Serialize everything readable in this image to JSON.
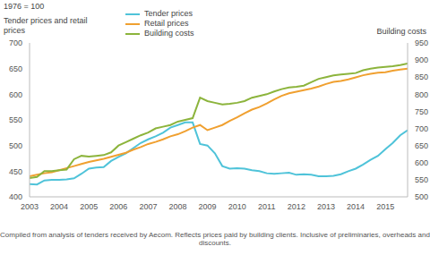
{
  "chart_data": {
    "type": "line",
    "title": "1976 = 100",
    "y_label": "Tender prices and retail prices",
    "y2_label": "Building costs",
    "footnote": "Compiled from analysis of tenders received by Aecom. Reflects prices paid by building clients. Inclusive of preliminaries, overheads and discounts.",
    "x": [
      2003,
      2003.25,
      2003.5,
      2003.75,
      2004,
      2004.25,
      2004.5,
      2004.75,
      2005,
      2005.25,
      2005.5,
      2005.75,
      2006,
      2006.25,
      2006.5,
      2006.75,
      2007,
      2007.25,
      2007.5,
      2007.75,
      2008,
      2008.25,
      2008.5,
      2008.75,
      2009,
      2009.25,
      2009.5,
      2009.75,
      2010,
      2010.25,
      2010.5,
      2010.75,
      2011,
      2011.25,
      2011.5,
      2011.75,
      2012,
      2012.25,
      2012.5,
      2012.75,
      2013,
      2013.25,
      2013.5,
      2013.75,
      2014,
      2014.25,
      2014.5,
      2014.75,
      2015,
      2015.25,
      2015.5,
      2015.75
    ],
    "xlim": [
      2003,
      2015.75
    ],
    "xticks": [
      2003,
      2004,
      2005,
      2006,
      2007,
      2008,
      2009,
      2010,
      2011,
      2012,
      2013,
      2014,
      2015
    ],
    "ylim": [
      400,
      700
    ],
    "yticks": [
      400,
      450,
      500,
      550,
      600,
      650,
      700
    ],
    "y2lim": [
      500,
      950
    ],
    "y2ticks": [
      500,
      550,
      600,
      650,
      700,
      750,
      800,
      850,
      900,
      950
    ],
    "grid": false,
    "legend": "top",
    "series": [
      {
        "name": "Tender prices",
        "color": "#4fc3d9",
        "values": [
          425,
          424,
          432,
          433,
          433,
          434,
          436,
          445,
          455,
          457,
          458,
          470,
          478,
          485,
          495,
          505,
          512,
          518,
          525,
          535,
          540,
          545,
          545,
          503,
          500,
          485,
          460,
          455,
          456,
          455,
          452,
          450,
          446,
          445,
          446,
          447,
          443,
          444,
          443,
          440,
          440,
          441,
          444,
          450,
          455,
          463,
          472,
          480,
          493,
          505,
          520,
          530
        ]
      },
      {
        "name": "Retail prices",
        "color": "#f0a030",
        "values": [
          440,
          443,
          446,
          448,
          452,
          456,
          460,
          464,
          468,
          471,
          474,
          478,
          482,
          486,
          492,
          497,
          503,
          507,
          512,
          518,
          522,
          528,
          535,
          540,
          530,
          535,
          540,
          548,
          555,
          563,
          570,
          575,
          582,
          590,
          597,
          602,
          605,
          608,
          611,
          615,
          620,
          624,
          626,
          629,
          633,
          637,
          640,
          642,
          643,
          646,
          648,
          650
        ]
      },
      {
        "name": "Building costs",
        "color": "#8cb43c",
        "axis": "y2",
        "values": [
          555,
          558,
          575,
          575,
          578,
          580,
          610,
          620,
          618,
          620,
          622,
          630,
          650,
          660,
          670,
          680,
          688,
          700,
          705,
          710,
          720,
          725,
          730,
          790,
          780,
          775,
          770,
          772,
          775,
          780,
          790,
          795,
          800,
          808,
          815,
          820,
          822,
          825,
          835,
          845,
          850,
          855,
          858,
          860,
          862,
          870,
          875,
          878,
          880,
          882,
          885,
          890
        ]
      }
    ]
  }
}
